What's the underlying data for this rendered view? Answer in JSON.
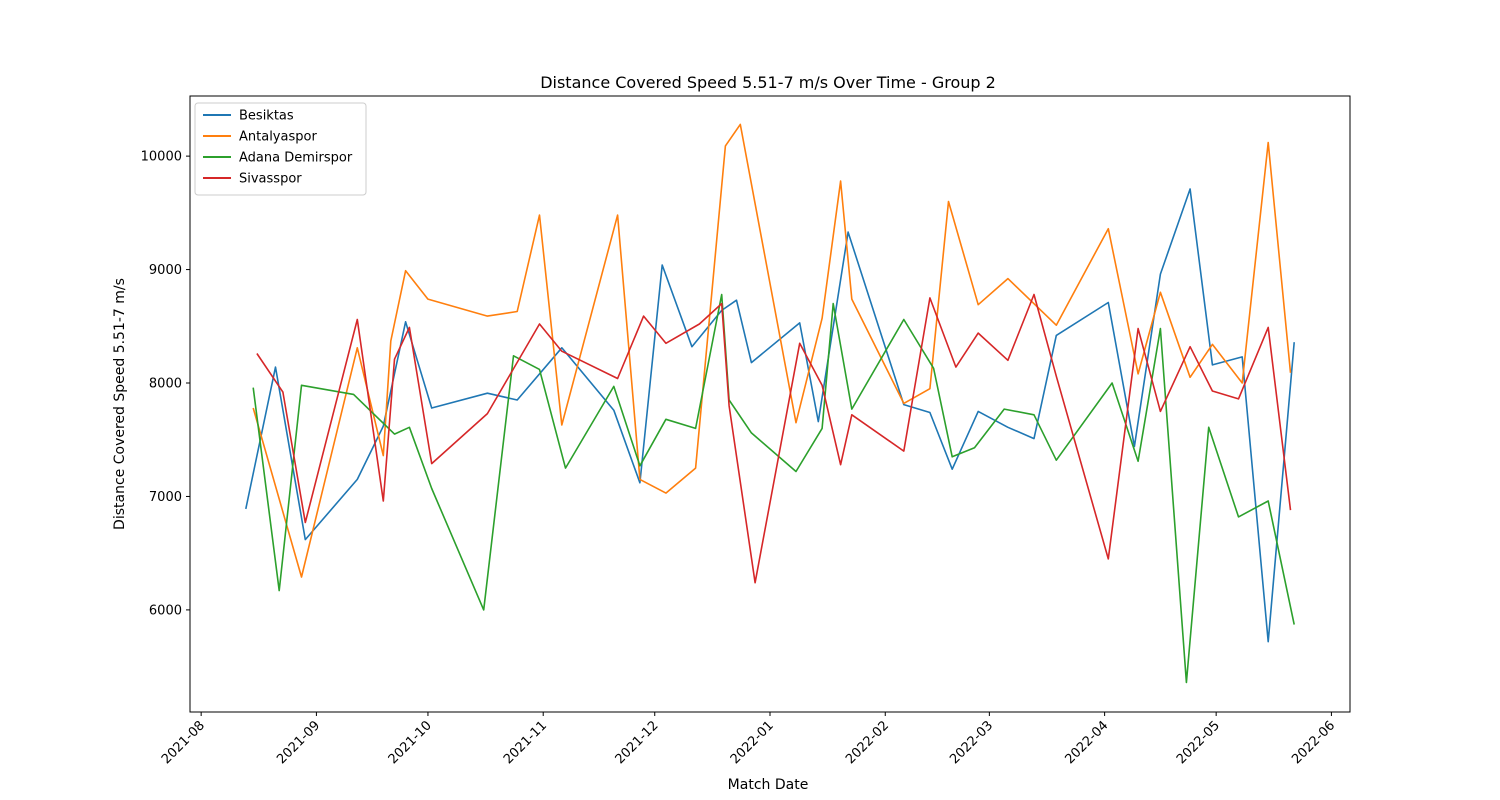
{
  "chart_data": {
    "type": "line",
    "title": "Distance Covered Speed 5.51-7 m/s Over Time - Group 2",
    "xlabel": "Match Date",
    "ylabel": "Distance Covered Speed 5.51-7 m/s",
    "x_ticks": [
      "2021-08",
      "2021-09",
      "2021-10",
      "2021-11",
      "2021-12",
      "2022-01",
      "2022-02",
      "2022-03",
      "2022-04",
      "2022-05",
      "2022-06"
    ],
    "y_ticks": [
      6000,
      7000,
      8000,
      9000,
      10000
    ],
    "xlim": [
      "2021-07-29",
      "2022-06-06"
    ],
    "ylim": [
      5100,
      10530
    ],
    "grid": false,
    "legend_position": "top-left",
    "series": [
      {
        "name": "Besiktas",
        "color": "#1f77b4",
        "points": [
          [
            "2021-08-13",
            6890
          ],
          [
            "2021-08-21",
            8140
          ],
          [
            "2021-08-29",
            6620
          ],
          [
            "2021-09-12",
            7150
          ],
          [
            "2021-09-19",
            7620
          ],
          [
            "2021-09-25",
            8540
          ],
          [
            "2021-10-02",
            7780
          ],
          [
            "2021-10-17",
            7910
          ],
          [
            "2021-10-25",
            7850
          ],
          [
            "2021-11-06",
            8310
          ],
          [
            "2021-11-20",
            7760
          ],
          [
            "2021-11-27",
            7120
          ],
          [
            "2021-12-03",
            9040
          ],
          [
            "2021-12-11",
            8320
          ],
          [
            "2021-12-19",
            8640
          ],
          [
            "2021-12-23",
            8730
          ],
          [
            "2021-12-27",
            8180
          ],
          [
            "2022-01-09",
            8530
          ],
          [
            "2022-01-14",
            7660
          ],
          [
            "2022-01-22",
            9330
          ],
          [
            "2022-02-06",
            7810
          ],
          [
            "2022-02-13",
            7740
          ],
          [
            "2022-02-19",
            7240
          ],
          [
            "2022-02-26",
            7750
          ],
          [
            "2022-03-06",
            7610
          ],
          [
            "2022-03-13",
            7510
          ],
          [
            "2022-03-19",
            8420
          ],
          [
            "2022-04-02",
            8710
          ],
          [
            "2022-04-09",
            7440
          ],
          [
            "2022-04-16",
            8960
          ],
          [
            "2022-04-24",
            9710
          ],
          [
            "2022-04-30",
            8160
          ],
          [
            "2022-05-08",
            8230
          ],
          [
            "2022-05-15",
            5720
          ],
          [
            "2022-05-22",
            8360
          ]
        ]
      },
      {
        "name": "Antalyaspor",
        "color": "#ff7f0e",
        "points": [
          [
            "2021-08-15",
            7780
          ],
          [
            "2021-08-28",
            6290
          ],
          [
            "2021-09-12",
            8310
          ],
          [
            "2021-09-19",
            7360
          ],
          [
            "2021-09-21",
            8370
          ],
          [
            "2021-09-25",
            8990
          ],
          [
            "2021-10-01",
            8740
          ],
          [
            "2021-10-17",
            8590
          ],
          [
            "2021-10-25",
            8630
          ],
          [
            "2021-10-31",
            9480
          ],
          [
            "2021-11-06",
            7630
          ],
          [
            "2021-11-21",
            9480
          ],
          [
            "2021-11-27",
            7150
          ],
          [
            "2021-12-04",
            7030
          ],
          [
            "2021-12-12",
            7250
          ],
          [
            "2021-12-20",
            10090
          ],
          [
            "2021-12-24",
            10280
          ],
          [
            "2022-01-08",
            7650
          ],
          [
            "2022-01-15",
            8570
          ],
          [
            "2022-01-20",
            9780
          ],
          [
            "2022-01-23",
            8740
          ],
          [
            "2022-02-06",
            7820
          ],
          [
            "2022-02-13",
            7950
          ],
          [
            "2022-02-18",
            9600
          ],
          [
            "2022-02-26",
            8690
          ],
          [
            "2022-03-06",
            8920
          ],
          [
            "2022-03-19",
            8510
          ],
          [
            "2022-04-02",
            9360
          ],
          [
            "2022-04-10",
            8080
          ],
          [
            "2022-04-16",
            8800
          ],
          [
            "2022-04-24",
            8050
          ],
          [
            "2022-04-30",
            8340
          ],
          [
            "2022-05-08",
            8000
          ],
          [
            "2022-05-15",
            10120
          ],
          [
            "2022-05-21",
            8090
          ]
        ]
      },
      {
        "name": "Adana Demirspor",
        "color": "#2ca02c",
        "points": [
          [
            "2021-08-15",
            7960
          ],
          [
            "2021-08-22",
            6170
          ],
          [
            "2021-08-28",
            7980
          ],
          [
            "2021-09-11",
            7900
          ],
          [
            "2021-09-22",
            7550
          ],
          [
            "2021-09-26",
            7610
          ],
          [
            "2021-10-02",
            7070
          ],
          [
            "2021-10-16",
            6000
          ],
          [
            "2021-10-24",
            8240
          ],
          [
            "2021-10-31",
            8120
          ],
          [
            "2021-11-07",
            7250
          ],
          [
            "2021-11-20",
            7970
          ],
          [
            "2021-11-27",
            7270
          ],
          [
            "2021-12-04",
            7680
          ],
          [
            "2021-12-12",
            7600
          ],
          [
            "2021-12-19",
            8780
          ],
          [
            "2021-12-21",
            7850
          ],
          [
            "2021-12-27",
            7560
          ],
          [
            "2022-01-08",
            7220
          ],
          [
            "2022-01-15",
            7600
          ],
          [
            "2022-01-18",
            8700
          ],
          [
            "2022-01-23",
            7770
          ],
          [
            "2022-02-06",
            8560
          ],
          [
            "2022-02-14",
            8130
          ],
          [
            "2022-02-19",
            7350
          ],
          [
            "2022-02-25",
            7430
          ],
          [
            "2022-03-05",
            7770
          ],
          [
            "2022-03-13",
            7720
          ],
          [
            "2022-03-19",
            7320
          ],
          [
            "2022-04-03",
            8000
          ],
          [
            "2022-04-10",
            7310
          ],
          [
            "2022-04-16",
            8480
          ],
          [
            "2022-04-23",
            5360
          ],
          [
            "2022-04-29",
            7610
          ],
          [
            "2022-05-07",
            6820
          ],
          [
            "2022-05-15",
            6960
          ],
          [
            "2022-05-22",
            5870
          ]
        ]
      },
      {
        "name": "Sivasspor",
        "color": "#d62728",
        "points": [
          [
            "2021-08-16",
            8260
          ],
          [
            "2021-08-23",
            7920
          ],
          [
            "2021-08-29",
            6770
          ],
          [
            "2021-09-12",
            8560
          ],
          [
            "2021-09-19",
            6960
          ],
          [
            "2021-09-22",
            8210
          ],
          [
            "2021-09-26",
            8490
          ],
          [
            "2021-10-02",
            7290
          ],
          [
            "2021-10-17",
            7730
          ],
          [
            "2021-10-31",
            8520
          ],
          [
            "2021-11-06",
            8280
          ],
          [
            "2021-11-21",
            8040
          ],
          [
            "2021-11-28",
            8590
          ],
          [
            "2021-12-04",
            8350
          ],
          [
            "2021-12-13",
            8520
          ],
          [
            "2021-12-19",
            8700
          ],
          [
            "2021-12-21",
            7800
          ],
          [
            "2021-12-28",
            6240
          ],
          [
            "2022-01-09",
            8350
          ],
          [
            "2022-01-15",
            7980
          ],
          [
            "2022-01-20",
            7280
          ],
          [
            "2022-01-23",
            7720
          ],
          [
            "2022-02-06",
            7400
          ],
          [
            "2022-02-13",
            8750
          ],
          [
            "2022-02-20",
            8140
          ],
          [
            "2022-02-26",
            8440
          ],
          [
            "2022-03-06",
            8200
          ],
          [
            "2022-03-13",
            8780
          ],
          [
            "2022-03-19",
            8060
          ],
          [
            "2022-04-02",
            6450
          ],
          [
            "2022-04-10",
            8480
          ],
          [
            "2022-04-16",
            7750
          ],
          [
            "2022-04-24",
            8320
          ],
          [
            "2022-04-30",
            7930
          ],
          [
            "2022-05-07",
            7860
          ],
          [
            "2022-05-15",
            8490
          ],
          [
            "2022-05-21",
            6880
          ]
        ]
      }
    ]
  }
}
